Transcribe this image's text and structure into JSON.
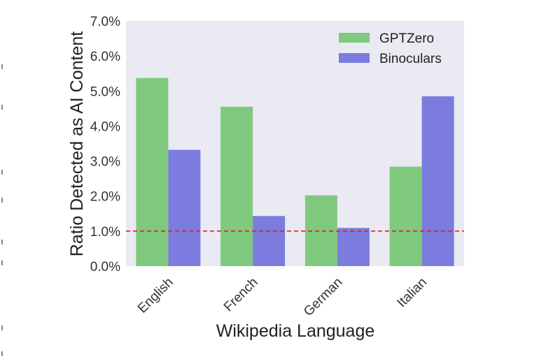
{
  "chart_data": {
    "type": "bar",
    "categories": [
      "English",
      "French",
      "German",
      "Italian"
    ],
    "series": [
      {
        "name": "GPTZero",
        "color": "#7fc97f",
        "values": [
          5.37,
          4.55,
          2.02,
          2.84
        ]
      },
      {
        "name": "Binoculars",
        "color": "#7b7cde",
        "values": [
          3.32,
          1.43,
          1.09,
          4.85
        ]
      }
    ],
    "xlabel": "Wikipedia Language",
    "ylabel": "Ratio Detected as AI Content",
    "ylim": [
      0,
      7
    ],
    "yticks": [
      "0.0%",
      "1.0%",
      "2.0%",
      "3.0%",
      "4.0%",
      "5.0%",
      "6.0%",
      "7.0%"
    ],
    "reference_line": {
      "value": 1.0,
      "color": "#e02020",
      "style": "dashed"
    },
    "legend_position": "top-right",
    "background": "#eaeaf2",
    "grid": false
  }
}
